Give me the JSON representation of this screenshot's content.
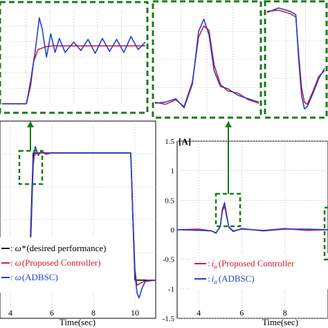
{
  "colors": {
    "reference": "#000000",
    "proposed": "#d81b2a",
    "adbsc": "#1f3fd6",
    "zoom_box": "#1a7a1a",
    "arrow": "#1a7a1a",
    "grid": "#bfbfbf"
  },
  "chart_data": [
    {
      "type": "line",
      "panel": "left-speed",
      "xlabel": "Time(sec)",
      "ylabel": "",
      "xticks": [
        4,
        6,
        8,
        10
      ],
      "xtick_labels": [
        "4",
        "6",
        "8",
        "10"
      ],
      "xlim": [
        3.5,
        11.0
      ],
      "ylim": [
        -0.3,
        1.25
      ],
      "grid": true,
      "legend_position": "bottom-left",
      "legend": [
        {
          "series": "reference",
          "symbol": "ω*",
          "text": "(desired performance)"
        },
        {
          "series": "proposed",
          "symbol": "ω",
          "text": "(Proposed Controller)"
        },
        {
          "series": "adbsc",
          "symbol": "ω",
          "text": "(ADBSC)"
        }
      ],
      "series": [
        {
          "key": "reference",
          "x": [
            3.5,
            4.9,
            5.1,
            9.8,
            10.0,
            11.0
          ],
          "y": [
            0,
            0,
            1,
            1,
            0,
            0
          ]
        },
        {
          "key": "proposed",
          "x": [
            3.5,
            4.9,
            5.0,
            5.1,
            5.15,
            5.3,
            9.8,
            9.9,
            10.0,
            10.1,
            10.3,
            10.6,
            11.0
          ],
          "y": [
            0,
            0,
            0.45,
            0.9,
            0.98,
            1.0,
            1.0,
            0.5,
            0.08,
            -0.04,
            -0.02,
            0,
            0
          ]
        },
        {
          "key": "adbsc",
          "x": [
            3.5,
            4.9,
            5.0,
            5.1,
            5.2,
            5.35,
            5.5,
            5.7,
            6.0,
            9.8,
            9.9,
            10.0,
            10.1,
            10.2,
            10.35,
            10.5,
            11.0
          ],
          "y": [
            0,
            0,
            0.4,
            0.95,
            1.05,
            0.98,
            1.02,
            0.99,
            1.0,
            1.0,
            0.5,
            0.05,
            -0.1,
            -0.14,
            -0.06,
            -0.01,
            0
          ]
        }
      ]
    },
    {
      "type": "line",
      "panel": "right-current",
      "xlabel": "Time(sec)",
      "ylabel": "[A]",
      "xticks": [
        4,
        6,
        8
      ],
      "xtick_labels": [
        "4",
        "6",
        "8"
      ],
      "yticks": [
        -1.5,
        -1,
        -0.5,
        0,
        0.5,
        1,
        1.5
      ],
      "ytick_labels": [
        "-1.5",
        "-1",
        "-0.5",
        "0",
        "0.5",
        "1",
        "1.5"
      ],
      "xlim": [
        3.0,
        10.0
      ],
      "ylim": [
        -1.5,
        1.5
      ],
      "grid": true,
      "legend_position": "bottom-right",
      "legend": [
        {
          "series": "proposed",
          "symbol": "i",
          "subscript": "a",
          "text": "(Proposed Controller"
        },
        {
          "series": "adbsc",
          "symbol": "i",
          "subscript": "a",
          "text": "(ADBSC)"
        }
      ],
      "series": [
        {
          "key": "proposed",
          "x": [
            3.0,
            4.0,
            4.6,
            4.8,
            5.0,
            5.1,
            5.2,
            5.3,
            5.4,
            5.6,
            6.0,
            7.0,
            8.0,
            9.0,
            10.0
          ],
          "y": [
            0,
            0.01,
            -0.02,
            -0.05,
            0.05,
            0.32,
            0.4,
            0.22,
            0.05,
            -0.02,
            0.01,
            -0.01,
            0.02,
            -0.01,
            0
          ]
        },
        {
          "key": "adbsc",
          "x": [
            3.0,
            4.0,
            4.6,
            4.8,
            5.0,
            5.1,
            5.2,
            5.3,
            5.4,
            5.6,
            6.0,
            7.0,
            8.0,
            9.0,
            10.0
          ],
          "y": [
            0,
            -0.01,
            -0.02,
            -0.06,
            0.06,
            0.35,
            0.46,
            0.25,
            0.04,
            -0.03,
            0.02,
            -0.02,
            0.01,
            0.01,
            0
          ]
        }
      ]
    },
    {
      "type": "line",
      "panel": "zoom-speed",
      "xlim": [
        0,
        1
      ],
      "ylim": [
        0,
        1
      ],
      "grid": true,
      "series": [
        {
          "key": "proposed",
          "x": [
            0,
            0.17,
            0.2,
            0.22,
            0.25,
            0.3,
            0.35,
            1.0
          ],
          "y": [
            0.0,
            0.0,
            0.2,
            0.45,
            0.58,
            0.61,
            0.62,
            0.62
          ]
        },
        {
          "key": "adbsc",
          "x": [
            0,
            0.17,
            0.2,
            0.23,
            0.26,
            0.28,
            0.31,
            0.34,
            0.37,
            0.4,
            0.44,
            0.5,
            0.55,
            0.6,
            0.65,
            0.7,
            0.75,
            0.8,
            0.85,
            0.9,
            0.95,
            1.0
          ],
          "y": [
            0.0,
            0.0,
            0.25,
            0.55,
            0.92,
            0.8,
            0.5,
            0.75,
            0.55,
            0.7,
            0.55,
            0.66,
            0.57,
            0.69,
            0.54,
            0.7,
            0.56,
            0.69,
            0.55,
            0.72,
            0.58,
            0.66
          ]
        }
      ]
    },
    {
      "type": "line",
      "panel": "zoom-current-rise",
      "xlim": [
        0,
        1
      ],
      "ylim": [
        0,
        1
      ],
      "grid": true,
      "series": [
        {
          "key": "proposed",
          "x": [
            0,
            0.1,
            0.2,
            0.28,
            0.36,
            0.42,
            0.47,
            0.52,
            0.57,
            0.63,
            0.7,
            0.8,
            0.9,
            1.0
          ],
          "y": [
            0.12,
            0.1,
            0.14,
            0.08,
            0.3,
            0.7,
            0.8,
            0.76,
            0.45,
            0.28,
            0.22,
            0.2,
            0.14,
            0.11
          ]
        },
        {
          "key": "adbsc",
          "x": [
            0,
            0.1,
            0.2,
            0.28,
            0.36,
            0.42,
            0.47,
            0.52,
            0.57,
            0.63,
            0.7,
            0.8,
            0.9,
            1.0
          ],
          "y": [
            0.11,
            0.12,
            0.15,
            0.07,
            0.28,
            0.75,
            0.86,
            0.72,
            0.4,
            0.26,
            0.24,
            0.18,
            0.15,
            0.12
          ]
        }
      ]
    },
    {
      "type": "line",
      "panel": "zoom-current-fall",
      "xlim": [
        0,
        1
      ],
      "ylim": [
        0,
        1
      ],
      "grid": true,
      "series": [
        {
          "key": "proposed",
          "x": [
            0,
            0.2,
            0.4,
            0.5,
            0.55,
            0.6,
            0.65,
            0.7,
            0.8,
            0.9,
            1.0
          ],
          "y": [
            0.93,
            0.94,
            0.91,
            0.88,
            0.55,
            0.25,
            0.12,
            0.1,
            0.22,
            0.35,
            0.4
          ]
        },
        {
          "key": "adbsc",
          "x": [
            0,
            0.2,
            0.4,
            0.5,
            0.55,
            0.6,
            0.65,
            0.7,
            0.8,
            0.9,
            1.0
          ],
          "y": [
            0.92,
            0.96,
            0.93,
            0.9,
            0.5,
            0.18,
            0.06,
            0.08,
            0.2,
            0.33,
            0.42
          ]
        }
      ]
    }
  ]
}
